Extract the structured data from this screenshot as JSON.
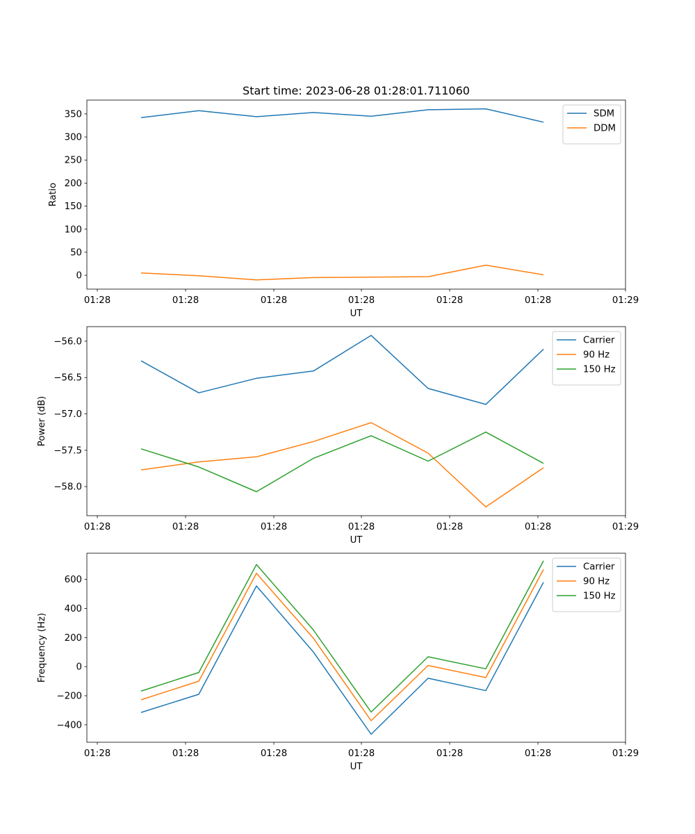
{
  "title": "Start time: 2023-06-28 01:28:01.711060",
  "chart_data": [
    {
      "type": "line",
      "xlabel": "UT",
      "ylabel": "Ratio",
      "x_tick_labels": [
        "01:28",
        "01:28",
        "01:28",
        "01:28",
        "01:28",
        "01:28",
        "01:28",
        "01:29"
      ],
      "y_ticks": [
        0,
        50,
        100,
        150,
        200,
        250,
        300,
        350
      ],
      "ylim": [
        -30,
        380
      ],
      "legend_position": "top-right",
      "series": [
        {
          "name": "SDM",
          "color": "#1f77b4",
          "values": [
            342,
            357,
            344,
            353,
            345,
            359,
            361,
            332
          ]
        },
        {
          "name": "DDM",
          "color": "#ff7f0e",
          "values": [
            5,
            -1,
            -10,
            -5,
            -4,
            -3,
            22,
            1
          ]
        }
      ]
    },
    {
      "type": "line",
      "xlabel": "UT",
      "ylabel": "Power (dB)",
      "x_tick_labels": [
        "01:28",
        "01:28",
        "01:28",
        "01:28",
        "01:28",
        "01:28",
        "01:28",
        "01:29"
      ],
      "y_ticks": [
        -58.0,
        -57.5,
        -57.0,
        -56.5,
        -56.0
      ],
      "ylim": [
        -58.4,
        -55.8
      ],
      "legend_position": "top-right",
      "series": [
        {
          "name": "Carrier",
          "color": "#1f77b4",
          "values": [
            -56.27,
            -56.71,
            -56.51,
            -56.41,
            -55.92,
            -56.65,
            -56.87,
            -56.11
          ]
        },
        {
          "name": "90 Hz",
          "color": "#ff7f0e",
          "values": [
            -57.77,
            -57.66,
            -57.59,
            -57.38,
            -57.12,
            -57.54,
            -58.28,
            -57.74
          ]
        },
        {
          "name": "150 Hz",
          "color": "#2ca02c",
          "values": [
            -57.48,
            -57.73,
            -58.07,
            -57.61,
            -57.3,
            -57.65,
            -57.25,
            -57.68
          ]
        }
      ]
    },
    {
      "type": "line",
      "xlabel": "UT",
      "ylabel": "Frequency (Hz)",
      "x_tick_labels": [
        "01:28",
        "01:28",
        "01:28",
        "01:28",
        "01:28",
        "01:28",
        "01:28",
        "01:29"
      ],
      "y_ticks": [
        -400,
        -200,
        0,
        200,
        400,
        600
      ],
      "ylim": [
        -520,
        780
      ],
      "legend_position": "top-right",
      "series": [
        {
          "name": "Carrier",
          "color": "#1f77b4",
          "values": [
            -315,
            -190,
            555,
            100,
            -465,
            -80,
            -165,
            580
          ]
        },
        {
          "name": "90 Hz",
          "color": "#ff7f0e",
          "values": [
            -228,
            -100,
            642,
            195,
            -372,
            8,
            -75,
            668
          ]
        },
        {
          "name": "150 Hz",
          "color": "#2ca02c",
          "values": [
            -168,
            -40,
            702,
            252,
            -312,
            68,
            -15,
            728
          ]
        }
      ]
    }
  ]
}
